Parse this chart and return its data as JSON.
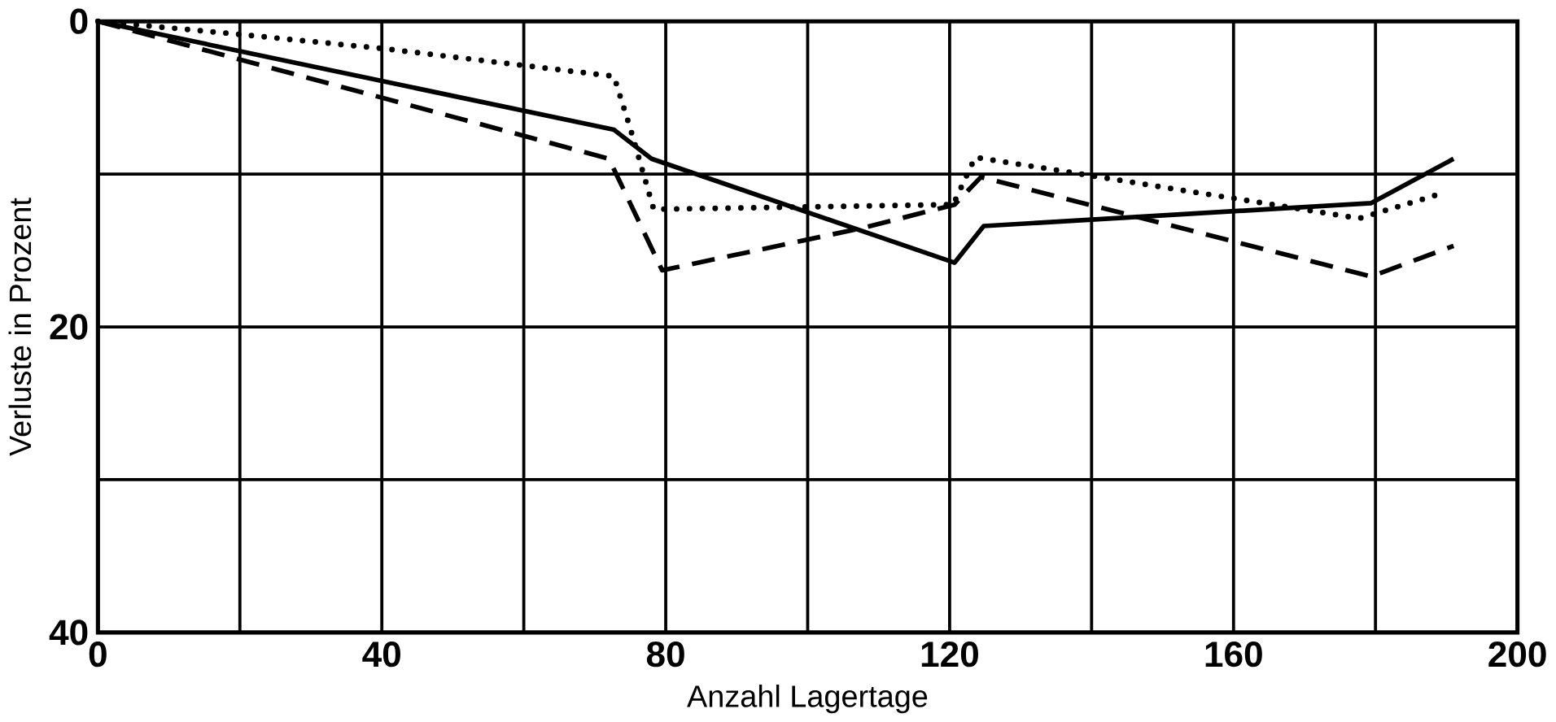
{
  "chart_data": {
    "type": "line",
    "xlabel": "Anzahl Lagertage",
    "ylabel": "Verluste in Prozent",
    "xlim": [
      0,
      200
    ],
    "ylim": [
      40,
      0
    ],
    "xticks": [
      0,
      {
        "value": 20,
        "label": null
      },
      40,
      {
        "value": 60,
        "label": null
      },
      80,
      {
        "value": 100,
        "label": null
      },
      120,
      {
        "value": 140,
        "label": null
      },
      160,
      {
        "value": 180,
        "label": null
      },
      200
    ],
    "yticks": [
      0,
      {
        "value": 10,
        "label": null
      },
      20,
      {
        "value": 30,
        "label": null
      },
      40
    ],
    "grid": true,
    "marker": "none",
    "series": [
      {
        "color": "#000000",
        "line_style": "solid",
        "x": [
          0,
          72.7,
          78,
          120.7,
          124.8,
          179.4,
          191
        ],
        "values": [
          0,
          7.1,
          9,
          15.8,
          13.4,
          11.9,
          9.0
        ]
      },
      {
        "color": "#000000",
        "line_style": "dotted",
        "x": [
          0,
          18.7,
          40.4,
          72.7,
          75,
          78.3,
          120.5,
          123.6,
          177.7,
          188.4
        ],
        "values": [
          0,
          0.8,
          1.8,
          3.6,
          7,
          12.3,
          12,
          8.9,
          12.9,
          11.4
        ]
      },
      {
        "color": "#000000",
        "line_style": "dashed",
        "x": [
          0,
          72,
          79.5,
          108,
          120.7,
          124.4,
          179.4,
          191
        ],
        "values": [
          0,
          9.0,
          16.3,
          13.5,
          12,
          10.2,
          16.7,
          14.7
        ]
      }
    ]
  }
}
